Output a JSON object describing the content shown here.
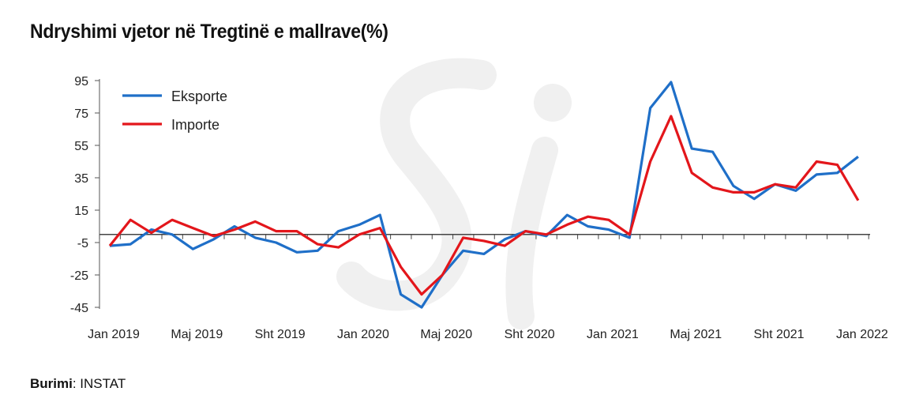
{
  "title": "Ndryshimi vjetor në Tregtinë e mallrave(%)",
  "source": {
    "label": "Burimi",
    "value": "INSTAT"
  },
  "watermark": "Si",
  "chart_data": {
    "type": "line",
    "title": "Ndryshimi vjetor në Tregtinë e mallrave(%)",
    "xlabel": "",
    "ylabel": "",
    "ylim": [
      -45,
      95
    ],
    "yticks": [
      95,
      75,
      55,
      35,
      15,
      -5,
      -25,
      -45
    ],
    "xtick_labels": [
      "Jan 2019",
      "Maj 2019",
      "Sht 2019",
      "Jan 2020",
      "Maj 2020",
      "Sht 2020",
      "Jan 2021",
      "Maj 2021",
      "Sht 2021",
      "Jan 2022"
    ],
    "x": [
      "2019-01",
      "2019-02",
      "2019-03",
      "2019-04",
      "2019-05",
      "2019-06",
      "2019-07",
      "2019-08",
      "2019-09",
      "2019-10",
      "2019-11",
      "2019-12",
      "2020-01",
      "2020-02",
      "2020-03",
      "2020-04",
      "2020-05",
      "2020-06",
      "2020-07",
      "2020-08",
      "2020-09",
      "2020-10",
      "2020-11",
      "2020-12",
      "2021-01",
      "2021-02",
      "2021-03",
      "2021-04",
      "2021-05",
      "2021-06",
      "2021-07",
      "2021-08",
      "2021-09",
      "2021-10",
      "2021-11",
      "2021-12",
      "2022-01"
    ],
    "legend_position": "top-left",
    "grid": false,
    "series": [
      {
        "name": "Eksporte",
        "color": "#1f6fc8",
        "values": [
          -7,
          -6,
          3,
          0,
          -9,
          -3,
          5,
          -2,
          -5,
          -11,
          -10,
          2,
          6,
          12,
          -37,
          -45,
          -25,
          -10,
          -12,
          -3,
          2,
          -1,
          12,
          5,
          3,
          -2,
          78,
          94,
          53,
          51,
          30,
          22,
          31,
          27,
          37,
          38,
          48
        ]
      },
      {
        "name": "Importe",
        "color": "#e3161b",
        "values": [
          -7,
          9,
          1,
          9,
          4,
          -1,
          3,
          8,
          2,
          2,
          -6,
          -8,
          0,
          4,
          -20,
          -37,
          -25,
          -2,
          -4,
          -7,
          2,
          0,
          6,
          11,
          9,
          0,
          45,
          73,
          38,
          29,
          26,
          26,
          31,
          29,
          45,
          43,
          21
        ]
      }
    ]
  }
}
